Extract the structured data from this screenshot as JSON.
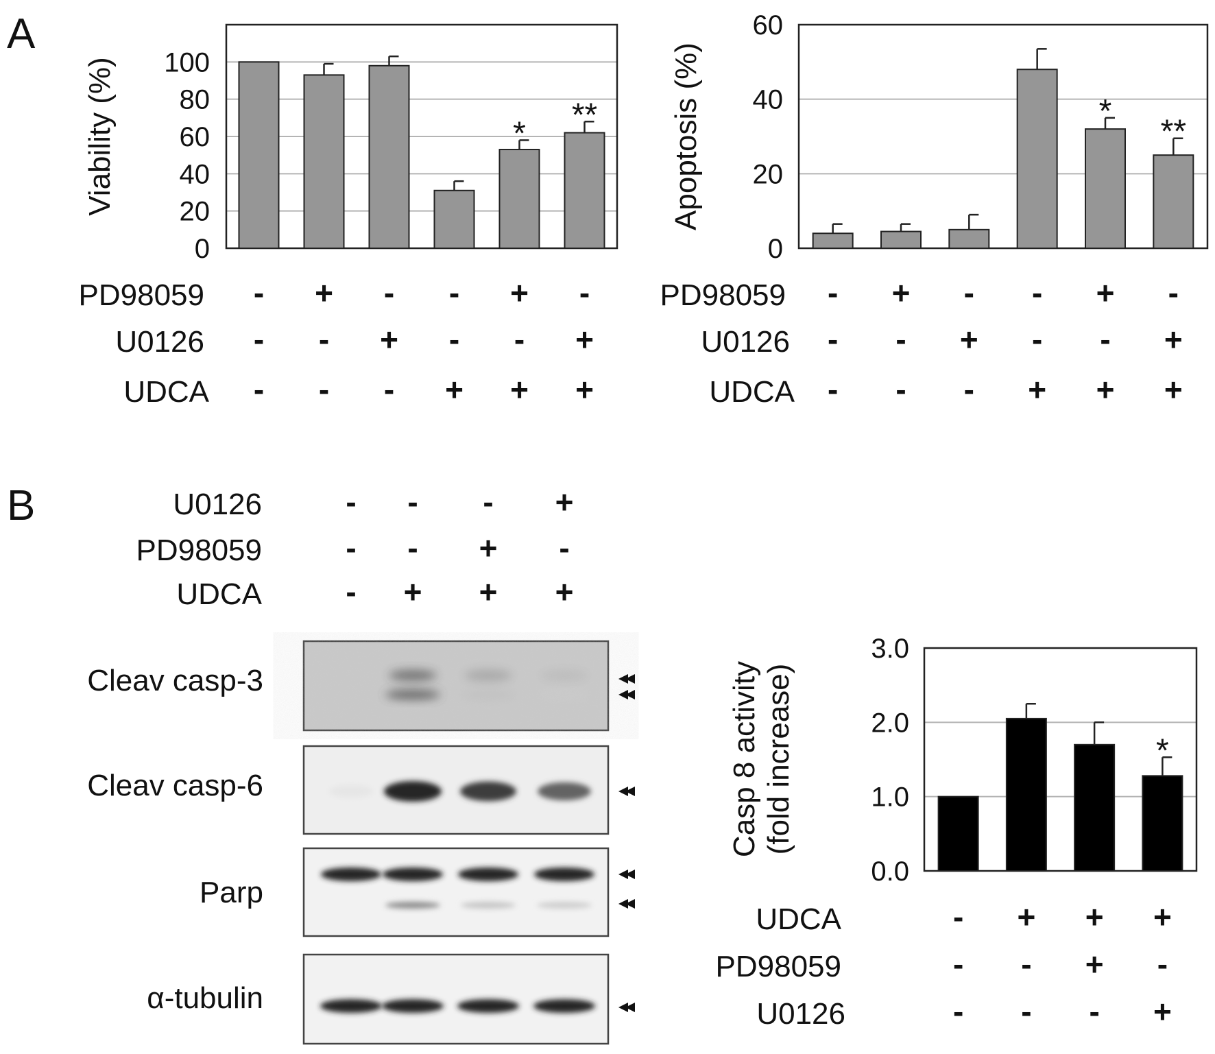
{
  "panel_labels": {
    "a": "A",
    "b": "B"
  },
  "colors": {
    "gray_bar": "#969696",
    "black_bar": "#000000",
    "gridline": "#b4b4b4",
    "axis": "#222222"
  },
  "chart_data": [
    {
      "id": "viability",
      "type": "bar",
      "ylabel": "Viability (%)",
      "ylim": [
        0,
        120
      ],
      "yticks": [
        "0",
        "20",
        "40",
        "60",
        "80",
        "100"
      ],
      "yticks_values": [
        0,
        20,
        40,
        60,
        80,
        100
      ],
      "grid": true,
      "series": [
        {
          "values": [
            100,
            93,
            98,
            31,
            53,
            62
          ],
          "errors": [
            0,
            6,
            5,
            5,
            5,
            6
          ],
          "color": "#969696"
        }
      ],
      "annotations": [
        "",
        "",
        "",
        "",
        "*",
        "**"
      ],
      "treatment_rows": [
        {
          "label": "PD98059",
          "signs": [
            "-",
            "+",
            "-",
            "-",
            "+",
            "-"
          ]
        },
        {
          "label": "U0126",
          "signs": [
            "-",
            "-",
            "+",
            "-",
            "-",
            "+"
          ]
        },
        {
          "label": "UDCA",
          "signs": [
            "-",
            "-",
            "-",
            "+",
            "+",
            "+"
          ]
        }
      ]
    },
    {
      "id": "apoptosis",
      "type": "bar",
      "ylabel": "Apoptosis (%)",
      "ylim": [
        0,
        60
      ],
      "yticks": [
        "0",
        "20",
        "40",
        "60"
      ],
      "yticks_values": [
        0,
        20,
        40,
        60
      ],
      "grid": true,
      "series": [
        {
          "values": [
            4,
            4.5,
            5,
            48,
            32,
            25
          ],
          "errors": [
            2.5,
            2,
            4,
            5.5,
            3,
            4.5
          ],
          "color": "#969696"
        }
      ],
      "annotations": [
        "",
        "",
        "",
        "",
        "*",
        "**"
      ],
      "treatment_rows": [
        {
          "label": "PD98059",
          "signs": [
            "-",
            "+",
            "-",
            "-",
            "+",
            "-"
          ]
        },
        {
          "label": "U0126",
          "signs": [
            "-",
            "-",
            "+",
            "-",
            "-",
            "+"
          ]
        },
        {
          "label": "UDCA",
          "signs": [
            "-",
            "-",
            "-",
            "+",
            "+",
            "+"
          ]
        }
      ]
    },
    {
      "id": "casp8",
      "type": "bar",
      "ylabel": [
        "Casp 8 activity",
        "(fold increase)"
      ],
      "ylim": [
        0,
        3
      ],
      "yticks": [
        "0.0",
        "1.0",
        "2.0",
        "3.0"
      ],
      "yticks_values": [
        0,
        1,
        2,
        3
      ],
      "grid": true,
      "series": [
        {
          "values": [
            1.0,
            2.05,
            1.7,
            1.28
          ],
          "errors": [
            0,
            0.2,
            0.3,
            0.25
          ],
          "color": "#000000"
        }
      ],
      "annotations": [
        "",
        "",
        "",
        "*"
      ],
      "treatment_rows": [
        {
          "label": "UDCA",
          "signs": [
            "-",
            "+",
            "+",
            "+"
          ]
        },
        {
          "label": "PD98059",
          "signs": [
            "-",
            "-",
            "+",
            "-"
          ]
        },
        {
          "label": "U0126",
          "signs": [
            "-",
            "-",
            "-",
            "+"
          ]
        }
      ]
    }
  ],
  "western_blot": {
    "treatment_rows": [
      {
        "label": "U0126",
        "signs": [
          "-",
          "-",
          "-",
          "+"
        ]
      },
      {
        "label": "PD98059",
        "signs": [
          "-",
          "-",
          "+",
          "-"
        ]
      },
      {
        "label": "UDCA",
        "signs": [
          "-",
          "+",
          "+",
          "+"
        ]
      }
    ],
    "panels": [
      {
        "label": "Cleav casp-3",
        "band_intensity": [
          0.0,
          0.8,
          0.3,
          0.1
        ],
        "arrows": 2
      },
      {
        "label": "Cleav casp-6",
        "band_intensity": [
          0.05,
          1.0,
          0.9,
          0.7
        ],
        "arrows": 1
      },
      {
        "label": "Parp",
        "band_intensity": [
          1.0,
          1.0,
          1.0,
          1.0
        ],
        "cleaved_intensity": [
          0.0,
          0.35,
          0.15,
          0.12
        ],
        "arrows": 2
      },
      {
        "label": "α-tubulin",
        "band_intensity": [
          1.0,
          1.0,
          1.0,
          1.0
        ],
        "arrows": 1
      }
    ]
  }
}
